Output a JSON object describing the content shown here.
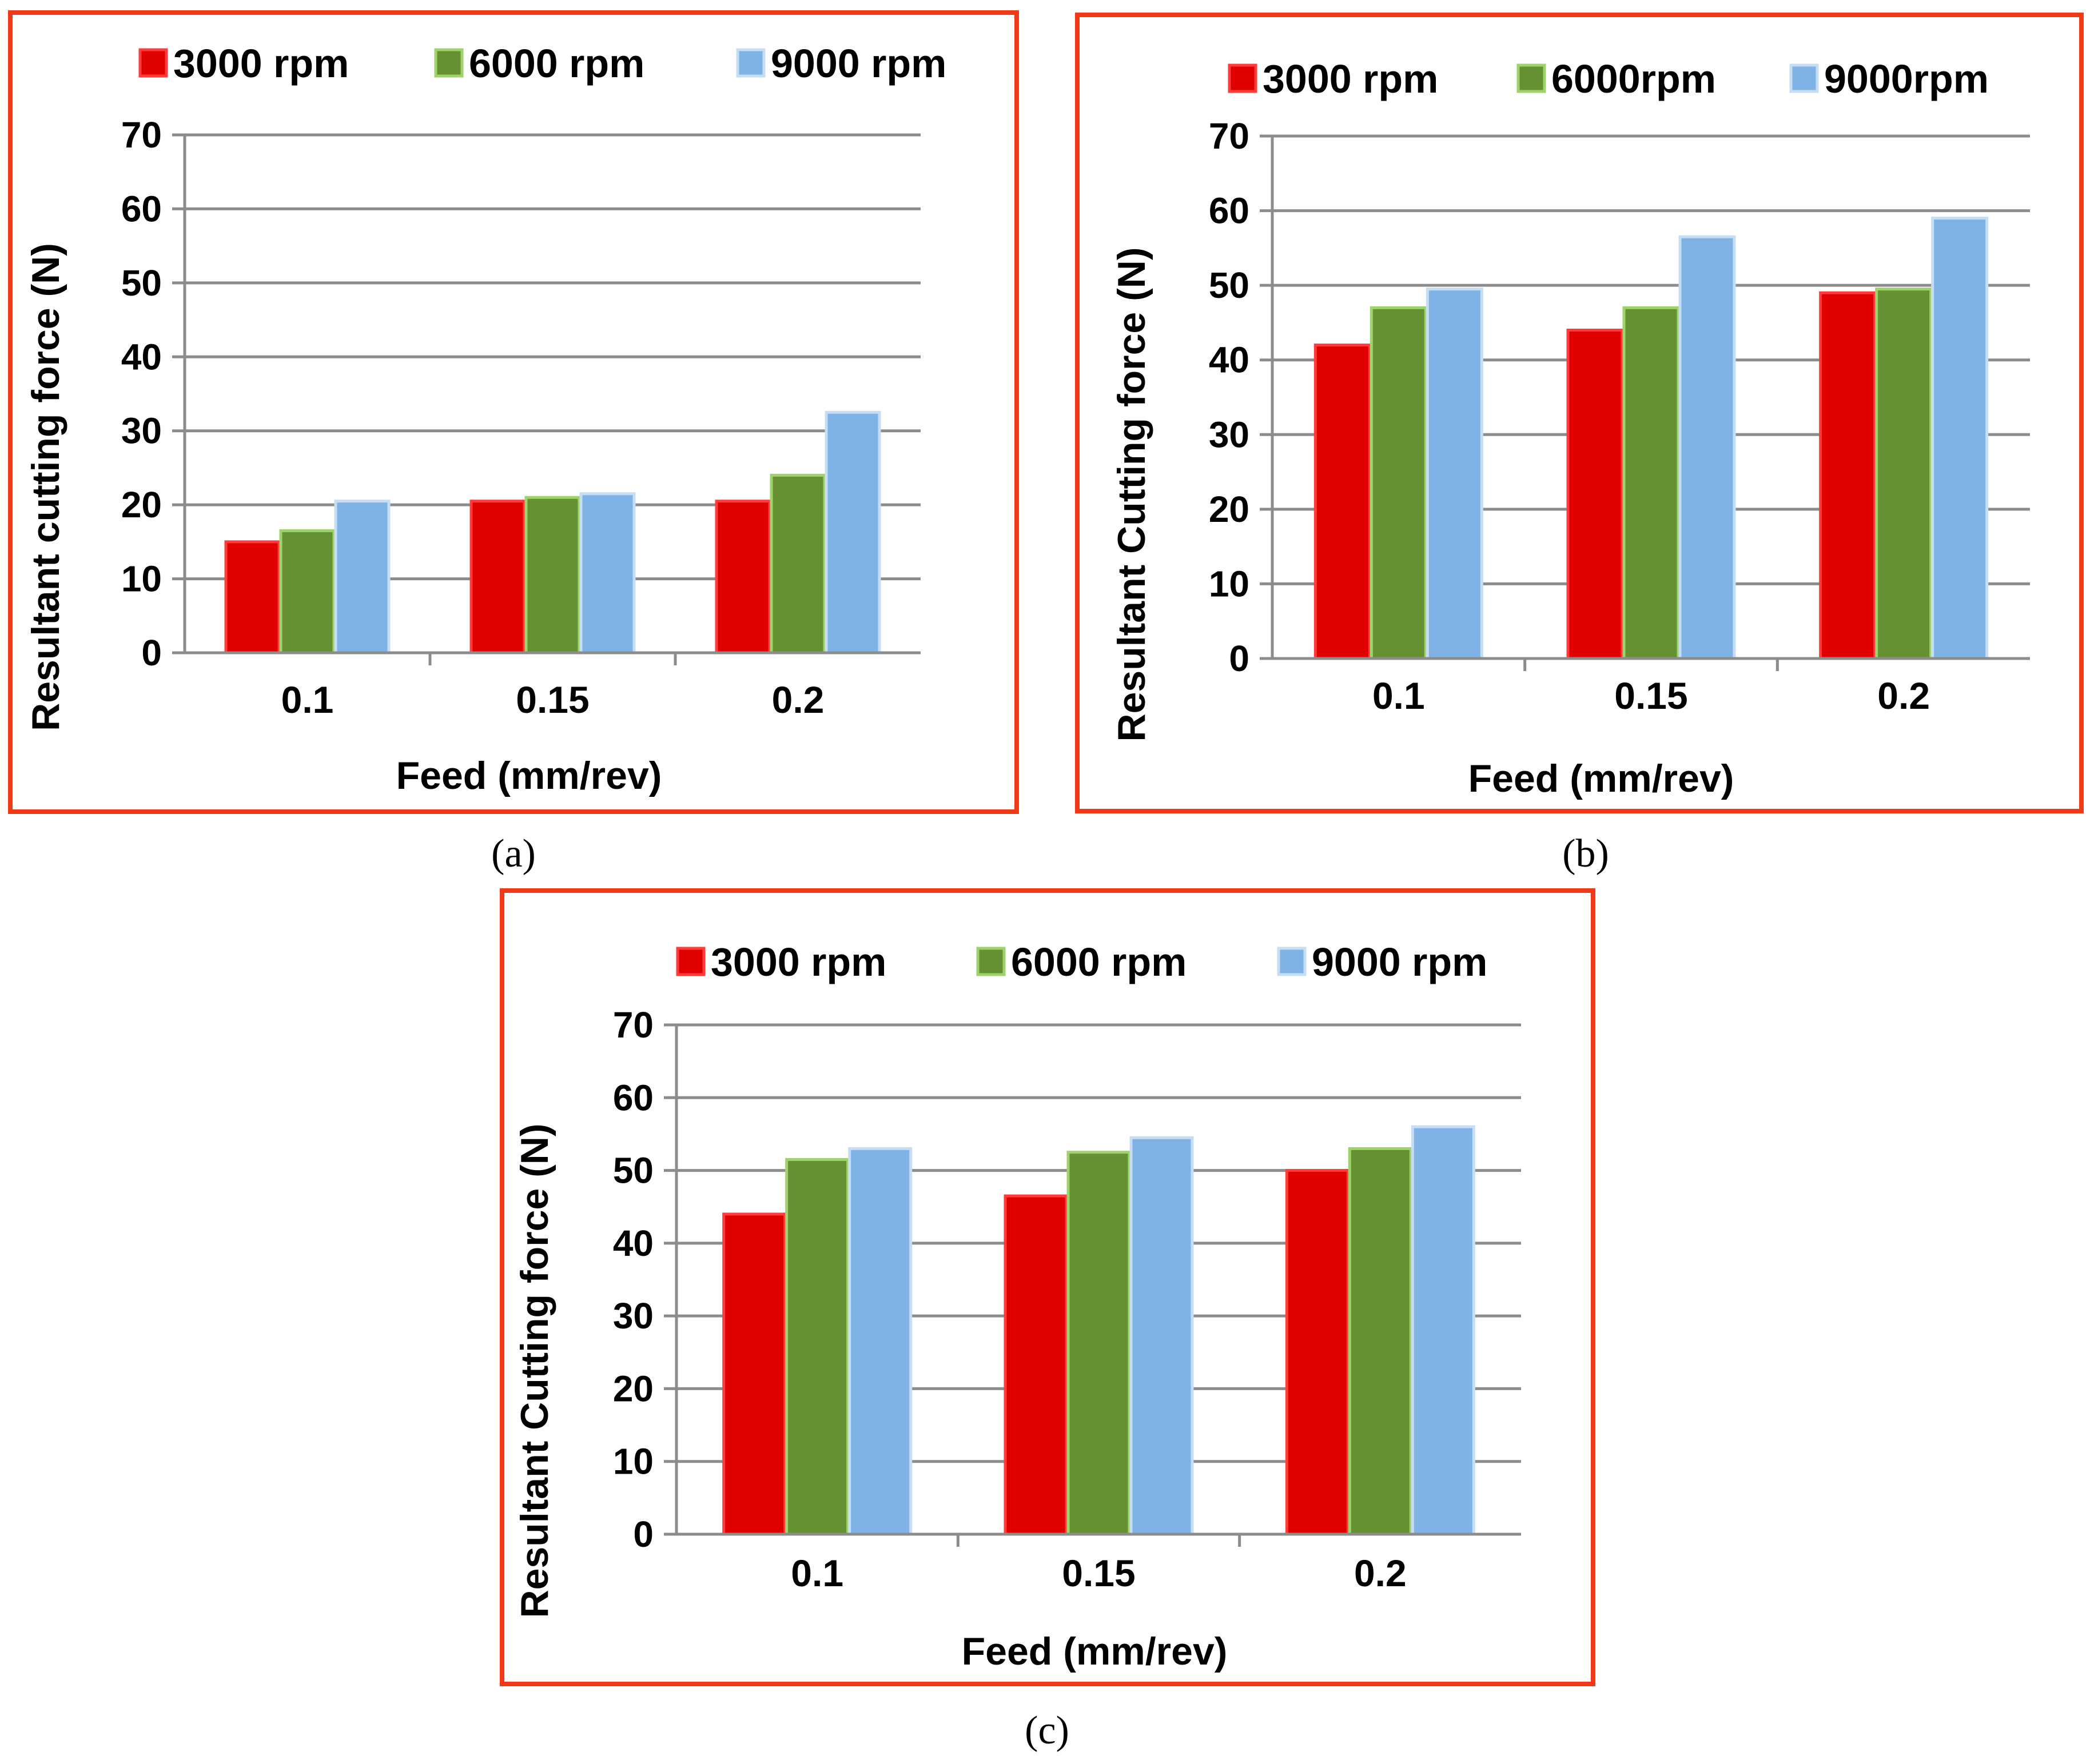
{
  "colors": {
    "frame": "#f03a17",
    "series": [
      "#e00000",
      "#669133",
      "#7fb3e5"
    ],
    "series_edge": [
      "#ff3b3b",
      "#9ed36b",
      "#c7ddf3"
    ]
  },
  "chart_data": [
    {
      "id": "a",
      "panel_label": "(a)",
      "type": "bar",
      "title": "",
      "xlabel": "Feed (mm/rev)",
      "ylabel": "Resultant cutting force (N)",
      "ylim": [
        0,
        70
      ],
      "yticks": [
        "0",
        "10",
        "20",
        "30",
        "40",
        "50",
        "60",
        "70"
      ],
      "categories": [
        "0.1",
        "0.15",
        "0.2"
      ],
      "grid": true,
      "legend_position": "top",
      "series": [
        {
          "name": "3000 rpm",
          "values": [
            15,
            20.5,
            20.5
          ]
        },
        {
          "name": "6000 rpm",
          "values": [
            16.5,
            21,
            24
          ]
        },
        {
          "name": "9000 rpm",
          "values": [
            20.5,
            21.5,
            32.5
          ]
        }
      ]
    },
    {
      "id": "b",
      "panel_label": "(b)",
      "type": "bar",
      "title": "",
      "xlabel": "Feed (mm/rev)",
      "ylabel": "Resultant Cutting force (N)",
      "ylim": [
        0,
        70
      ],
      "yticks": [
        "0",
        "10",
        "20",
        "30",
        "40",
        "50",
        "60",
        "70"
      ],
      "categories": [
        "0.1",
        "0.15",
        "0.2"
      ],
      "grid": true,
      "legend_position": "top",
      "series": [
        {
          "name": "3000 rpm",
          "values": [
            42,
            44,
            49
          ]
        },
        {
          "name": "6000rpm",
          "values": [
            47,
            47,
            49.5
          ]
        },
        {
          "name": "9000rpm",
          "values": [
            49.5,
            56.5,
            59
          ]
        }
      ]
    },
    {
      "id": "c",
      "panel_label": "(c)",
      "type": "bar",
      "title": "",
      "xlabel": "Feed (mm/rev)",
      "ylabel": "Resultant Cutting force (N)",
      "ylim": [
        0,
        70
      ],
      "yticks": [
        "0",
        "10",
        "20",
        "30",
        "40",
        "50",
        "60",
        "70"
      ],
      "categories": [
        "0.1",
        "0.15",
        "0.2"
      ],
      "grid": true,
      "legend_position": "top",
      "series": [
        {
          "name": "3000 rpm",
          "values": [
            44,
            46.5,
            50
          ]
        },
        {
          "name": "6000 rpm",
          "values": [
            51.5,
            52.5,
            53
          ]
        },
        {
          "name": "9000 rpm",
          "values": [
            53,
            54.5,
            56
          ]
        }
      ]
    }
  ]
}
